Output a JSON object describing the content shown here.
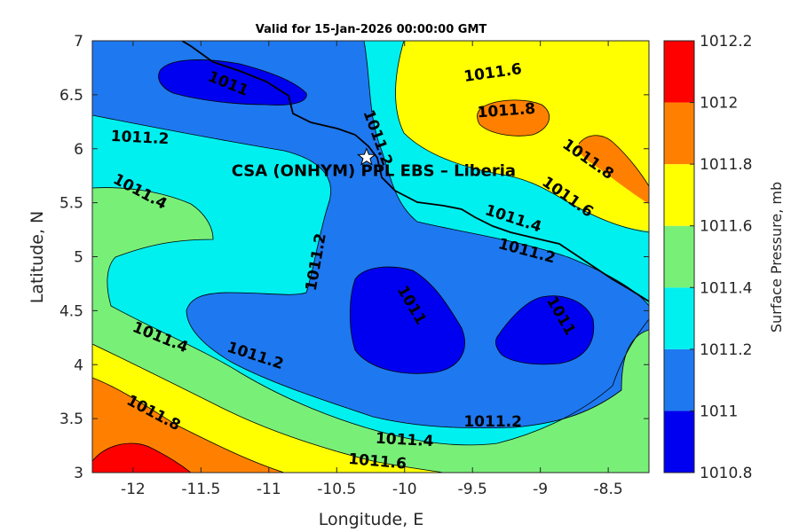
{
  "chart_data": {
    "type": "contour",
    "title": "Valid for 15-Jan-2026 00:00:00 GMT",
    "xlabel": "Longitude, E",
    "ylabel": "Latitude, N",
    "xlim": [
      -12.3,
      -8.2
    ],
    "ylim": [
      3,
      7
    ],
    "xticks": [
      -12,
      -11.5,
      -11,
      -10.5,
      -10,
      -9.5,
      -9,
      -8.5
    ],
    "xtick_labels": [
      "-12",
      "-11.5",
      "-11",
      "-10.5",
      "-10",
      "-9.5",
      "-9",
      "-8.5"
    ],
    "yticks": [
      3,
      3.5,
      4,
      4.5,
      5,
      5.5,
      6,
      6.5,
      7
    ],
    "ytick_labels": [
      "3",
      "3.5",
      "4",
      "4.5",
      "5",
      "5.5",
      "6",
      "6.5",
      "7"
    ],
    "colorbar": {
      "label": "Surface Pressure, mb",
      "levels": [
        1010.8,
        1011,
        1011.2,
        1011.4,
        1011.6,
        1011.8,
        1012,
        1012.2
      ],
      "tick_labels": [
        "1010.8",
        "1011",
        "1011.2",
        "1011.4",
        "1011.6",
        "1011.8",
        "1012",
        "1012.2"
      ],
      "colors": [
        "#0000f0",
        "#1e78f0",
        "#00f0f0",
        "#78f078",
        "#ffff00",
        "#ff8000",
        "#ff0000",
        "#800000"
      ]
    },
    "contour_labels": [
      {
        "text": "1011",
        "lon": -11.3,
        "lat": 6.6
      },
      {
        "text": "1011.6",
        "lon": -9.35,
        "lat": 6.7
      },
      {
        "text": "1011.8",
        "lon": -9.25,
        "lat": 6.35
      },
      {
        "text": "1011.8",
        "lon": -8.65,
        "lat": 5.9
      },
      {
        "text": "1011.2",
        "lon": -10.2,
        "lat": 6.1
      },
      {
        "text": "1011.2",
        "lon": -11.95,
        "lat": 6.1
      },
      {
        "text": "1011.6",
        "lon": -8.8,
        "lat": 5.55
      },
      {
        "text": "1011.4",
        "lon": -11.95,
        "lat": 5.6
      },
      {
        "text": "1011.4",
        "lon": -9.2,
        "lat": 5.35
      },
      {
        "text": "1011.2",
        "lon": -9.1,
        "lat": 5.05
      },
      {
        "text": "1011.2",
        "lon": -10.65,
        "lat": 4.95
      },
      {
        "text": "1011",
        "lon": -9.95,
        "lat": 4.55
      },
      {
        "text": "1011",
        "lon": -8.85,
        "lat": 4.45
      },
      {
        "text": "1011.4",
        "lon": -11.8,
        "lat": 4.25
      },
      {
        "text": "1011.2",
        "lon": -11.1,
        "lat": 4.08
      },
      {
        "text": "1011.8",
        "lon": -11.85,
        "lat": 3.55
      },
      {
        "text": "1011.2",
        "lon": -9.35,
        "lat": 3.47
      },
      {
        "text": "1011.4",
        "lon": -10.0,
        "lat": 3.3
      },
      {
        "text": "1011.6",
        "lon": -10.2,
        "lat": 3.1
      }
    ],
    "site": {
      "name": "CSA (ONHYM) PPL EBS  – Liberia",
      "lon": -10.28,
      "lat": 5.92,
      "marker": "star"
    }
  }
}
